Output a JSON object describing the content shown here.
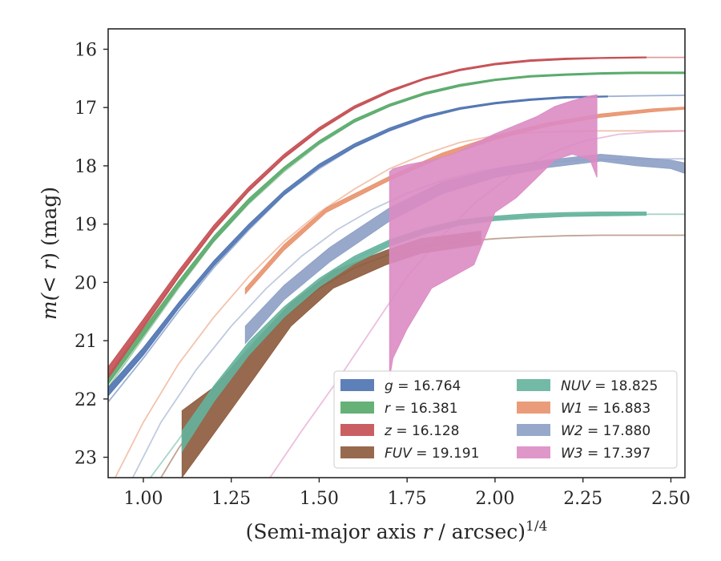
{
  "chart_data": {
    "type": "line",
    "title": "",
    "xlabel": {
      "prefix": "(Semi-major axis ",
      "var": "r",
      "suffix": " / arcsec)",
      "exponent": "1/4"
    },
    "ylabel": {
      "prefix": "m(",
      "var": "< r",
      "suffix": ") (mag)"
    },
    "xlim": [
      0.9,
      2.54
    ],
    "ylim": [
      23.35,
      15.65
    ],
    "y_inverted": true,
    "xticks": [
      1.0,
      1.25,
      1.5,
      1.75,
      2.0,
      2.25,
      2.5
    ],
    "xtick_labels": [
      "1.00",
      "1.25",
      "1.50",
      "1.75",
      "2.00",
      "2.25",
      "2.50"
    ],
    "yticks": [
      16,
      17,
      18,
      19,
      20,
      21,
      22,
      23
    ],
    "ytick_labels": [
      "16",
      "17",
      "18",
      "19",
      "20",
      "21",
      "22",
      "23"
    ],
    "grid": false,
    "legend_position": "lower-right",
    "series": [
      {
        "key": "g",
        "legend_var": "g",
        "legend_value": " = 16.764",
        "color": "#4c72b0",
        "total": 16.764,
        "model": {
          "x": [
            0.9,
            1.0,
            1.1,
            1.2,
            1.3,
            1.4,
            1.5,
            1.6,
            1.7,
            1.8,
            1.9,
            2.0,
            2.1,
            2.2,
            2.3,
            2.4,
            2.54
          ],
          "y": [
            22.05,
            21.3,
            20.5,
            19.75,
            19.1,
            18.5,
            18.05,
            17.68,
            17.4,
            17.18,
            17.03,
            16.93,
            16.87,
            16.83,
            16.81,
            16.8,
            16.79
          ]
        },
        "obs": {
          "x": [
            0.9,
            1.0,
            1.1,
            1.2,
            1.3,
            1.4,
            1.5,
            1.6,
            1.7,
            1.8,
            1.9,
            2.0,
            2.1,
            2.2,
            2.32
          ],
          "y_low": [
            21.95,
            21.25,
            20.45,
            19.72,
            19.08,
            18.5,
            18.03,
            17.68,
            17.4,
            17.18,
            17.03,
            16.94,
            16.88,
            16.84,
            16.82
          ],
          "y_high": [
            21.8,
            21.12,
            20.35,
            19.63,
            19.0,
            18.43,
            17.97,
            17.62,
            17.35,
            17.14,
            17.0,
            16.91,
            16.85,
            16.81,
            16.8
          ]
        }
      },
      {
        "key": "r",
        "legend_var": "r",
        "legend_value": " = 16.381",
        "color": "#55a868",
        "total": 16.381,
        "model": {
          "x": [
            0.9,
            1.0,
            1.1,
            1.2,
            1.3,
            1.4,
            1.5,
            1.6,
            1.7,
            1.8,
            1.9,
            2.0,
            2.1,
            2.2,
            2.3,
            2.4,
            2.54
          ],
          "y": [
            21.8,
            20.95,
            20.1,
            19.3,
            18.65,
            18.1,
            17.63,
            17.25,
            16.98,
            16.77,
            16.63,
            16.53,
            16.47,
            16.44,
            16.42,
            16.41,
            16.4
          ]
        },
        "obs": {
          "x": [
            0.9,
            1.0,
            1.1,
            1.2,
            1.3,
            1.4,
            1.5,
            1.6,
            1.7,
            1.8,
            1.9,
            2.0,
            2.1,
            2.2,
            2.3,
            2.4,
            2.54
          ],
          "y_low": [
            21.75,
            20.92,
            20.08,
            19.3,
            18.64,
            18.08,
            17.62,
            17.25,
            16.98,
            16.78,
            16.64,
            16.54,
            16.48,
            16.45,
            16.43,
            16.42,
            16.42
          ],
          "y_high": [
            21.6,
            20.8,
            19.98,
            19.21,
            18.56,
            18.02,
            17.57,
            17.2,
            16.94,
            16.74,
            16.6,
            16.51,
            16.45,
            16.42,
            16.4,
            16.39,
            16.39
          ]
        }
      },
      {
        "key": "z",
        "legend_var": "z",
        "legend_value": " = 16.128",
        "color": "#c44e52",
        "total": 16.128,
        "model": {
          "x": [
            0.9,
            1.0,
            1.1,
            1.2,
            1.3,
            1.4,
            1.5,
            1.6,
            1.7,
            1.8,
            1.9,
            2.0,
            2.1,
            2.2,
            2.3,
            2.4,
            2.54
          ],
          "y": [
            21.6,
            20.75,
            19.9,
            19.1,
            18.42,
            17.85,
            17.38,
            17.0,
            16.72,
            16.5,
            16.36,
            16.26,
            16.2,
            16.17,
            16.15,
            16.14,
            16.14
          ]
        },
        "obs": {
          "x": [
            0.9,
            1.0,
            1.1,
            1.2,
            1.3,
            1.4,
            1.5,
            1.6,
            1.7,
            1.8,
            1.9,
            2.0,
            2.1,
            2.2,
            2.3,
            2.43
          ],
          "y_low": [
            21.65,
            20.78,
            19.92,
            19.12,
            18.44,
            17.87,
            17.4,
            17.02,
            16.74,
            16.52,
            16.37,
            16.27,
            16.21,
            16.18,
            16.16,
            16.15
          ],
          "y_high": [
            21.45,
            20.63,
            19.8,
            19.02,
            18.36,
            17.8,
            17.34,
            16.97,
            16.7,
            16.49,
            16.34,
            16.24,
            16.18,
            16.15,
            16.14,
            16.13
          ]
        }
      },
      {
        "key": "FUV",
        "legend_var": "FUV",
        "legend_value": " = 19.191",
        "color": "#8c5a3c",
        "total": 19.191,
        "model": {
          "x": [
            1.05,
            1.1,
            1.2,
            1.3,
            1.4,
            1.5,
            1.6,
            1.7,
            1.8,
            1.9,
            2.0,
            2.1,
            2.2,
            2.3,
            2.4,
            2.54
          ],
          "y": [
            23.35,
            22.85,
            22.0,
            21.25,
            20.6,
            20.1,
            19.75,
            19.52,
            19.38,
            19.3,
            19.25,
            19.22,
            19.2,
            19.19,
            19.19,
            19.19
          ]
        },
        "obs": {
          "x": [
            1.11,
            1.2,
            1.32,
            1.42,
            1.54,
            1.69,
            1.79,
            1.96
          ],
          "y_low": [
            23.35,
            22.6,
            21.6,
            20.75,
            20.1,
            19.7,
            19.5,
            19.35
          ],
          "y_high": [
            22.2,
            21.8,
            21.0,
            20.35,
            19.8,
            19.45,
            19.25,
            19.12
          ]
        }
      },
      {
        "key": "NUV",
        "legend_var": "NUV",
        "legend_value": " = 18.825",
        "color": "#64b39c",
        "total": 18.825,
        "model": {
          "x": [
            1.02,
            1.1,
            1.2,
            1.3,
            1.4,
            1.5,
            1.6,
            1.7,
            1.8,
            1.9,
            2.0,
            2.1,
            2.2,
            2.3,
            2.4,
            2.54
          ],
          "y": [
            23.35,
            22.7,
            21.85,
            21.1,
            20.5,
            20.0,
            19.6,
            19.32,
            19.12,
            18.98,
            18.9,
            18.86,
            18.84,
            18.83,
            18.83,
            18.83
          ]
        },
        "obs": {
          "x": [
            1.11,
            1.2,
            1.3,
            1.4,
            1.5,
            1.6,
            1.7,
            1.8,
            1.9,
            2.0,
            2.1,
            2.2,
            2.3,
            2.43
          ],
          "y_low": [
            22.9,
            22.05,
            21.25,
            20.6,
            20.08,
            19.68,
            19.38,
            19.17,
            19.02,
            18.94,
            18.9,
            18.87,
            18.86,
            18.85
          ],
          "y_high": [
            22.55,
            21.78,
            21.02,
            20.42,
            19.93,
            19.55,
            19.27,
            19.07,
            18.93,
            18.86,
            18.82,
            18.8,
            18.79,
            18.79
          ]
        }
      },
      {
        "key": "W1",
        "legend_var": "W1",
        "legend_value": " = 16.883",
        "color": "#e8916b",
        "total": 16.883,
        "model": {
          "x": [
            0.92,
            1.0,
            1.1,
            1.2,
            1.3,
            1.4,
            1.5,
            1.6,
            1.7,
            1.8,
            1.9,
            2.0,
            2.1,
            2.2,
            2.3,
            2.4,
            2.54
          ],
          "y": [
            23.35,
            22.4,
            21.4,
            20.6,
            19.9,
            19.3,
            18.8,
            18.4,
            18.05,
            17.8,
            17.6,
            17.48,
            17.43,
            17.41,
            17.4,
            17.4,
            17.4
          ]
        },
        "obs": {
          "x": [
            1.29,
            1.4,
            1.52,
            1.7,
            1.85,
            2.0,
            2.15,
            2.3,
            2.45,
            2.54
          ],
          "y_low": [
            20.2,
            19.45,
            18.8,
            18.25,
            17.85,
            17.55,
            17.32,
            17.17,
            17.07,
            17.03
          ],
          "y_high": [
            20.1,
            19.35,
            18.72,
            18.18,
            17.78,
            17.48,
            17.26,
            17.11,
            17.02,
            16.99
          ]
        }
      },
      {
        "key": "W2",
        "legend_var": "W2",
        "legend_value": " = 17.880",
        "color": "#8c9fc5",
        "total": 17.88,
        "model": {
          "x": [
            0.97,
            1.05,
            1.15,
            1.25,
            1.35,
            1.45,
            1.55,
            1.65,
            1.75,
            1.85,
            1.95,
            2.05,
            2.15,
            2.25,
            2.35,
            2.45,
            2.54
          ],
          "y": [
            23.35,
            22.4,
            21.5,
            20.75,
            20.1,
            19.55,
            19.1,
            18.75,
            18.47,
            18.25,
            18.1,
            18.0,
            17.94,
            17.9,
            17.89,
            17.88,
            17.88
          ]
        },
        "obs": {
          "x": [
            1.29,
            1.4,
            1.53,
            1.7,
            1.85,
            2.0,
            2.15,
            2.3,
            2.4,
            2.5,
            2.54
          ],
          "y_low": [
            21.05,
            20.3,
            19.65,
            18.95,
            18.48,
            18.2,
            18.03,
            17.92,
            18.0,
            18.05,
            18.13
          ],
          "y_high": [
            20.75,
            20.05,
            19.4,
            18.72,
            18.28,
            18.05,
            17.9,
            17.8,
            17.85,
            17.9,
            17.95
          ]
        }
      },
      {
        "key": "W3",
        "legend_var": "W3",
        "legend_value": " = 17.397",
        "color": "#db8bc3",
        "total": 17.397,
        "model": {
          "x": [
            1.36,
            1.45,
            1.55,
            1.65,
            1.75,
            1.85,
            1.95,
            2.05,
            2.15,
            2.25,
            2.35,
            2.45,
            2.54
          ],
          "y": [
            23.35,
            22.55,
            21.7,
            20.8,
            19.9,
            19.2,
            18.6,
            18.15,
            17.8,
            17.58,
            17.46,
            17.42,
            17.4
          ]
        },
        "obs": {
          "x": [
            1.7,
            1.71,
            1.75,
            1.82,
            1.88,
            1.94,
            2.0,
            2.06,
            2.12,
            2.17,
            2.22,
            2.27,
            2.29
          ],
          "y_low": [
            21.65,
            21.3,
            20.8,
            20.1,
            19.9,
            19.7,
            18.8,
            18.55,
            18.2,
            17.9,
            17.8,
            17.9,
            18.2
          ],
          "y_high": [
            18.1,
            18.05,
            17.98,
            17.9,
            17.8,
            17.62,
            17.45,
            17.3,
            17.15,
            16.98,
            16.88,
            16.8,
            16.78
          ]
        }
      }
    ]
  }
}
